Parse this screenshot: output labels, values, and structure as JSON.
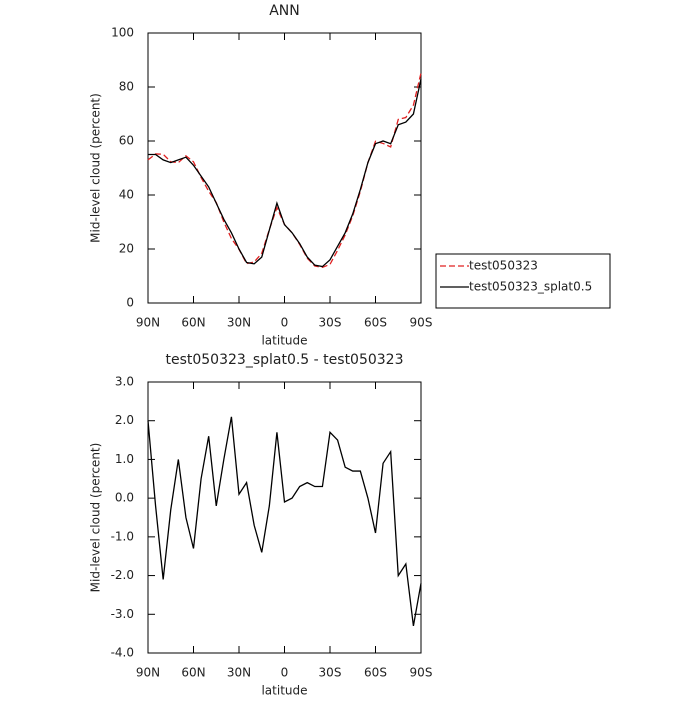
{
  "chart_data": [
    {
      "type": "line",
      "title": "ANN",
      "ylabel": "Mid-level cloud (percent)",
      "xlabel": "latitude",
      "x": [
        90,
        85,
        80,
        75,
        70,
        65,
        60,
        55,
        50,
        45,
        40,
        35,
        30,
        25,
        20,
        15,
        10,
        5,
        0,
        -5,
        -10,
        -15,
        -20,
        -25,
        -30,
        -35,
        -40,
        -45,
        -50,
        -55,
        -60,
        -65,
        -70,
        -75,
        -80,
        -85,
        -90
      ],
      "xlim": [
        90,
        -90
      ],
      "xticks": [
        {
          "value": 90,
          "label": "90N"
        },
        {
          "value": 60,
          "label": "60N"
        },
        {
          "value": 30,
          "label": "30N"
        },
        0,
        {
          "value": -30,
          "label": "30S"
        },
        {
          "value": -60,
          "label": "60S"
        },
        {
          "value": -90,
          "label": "90S"
        }
      ],
      "ylim": [
        0,
        100
      ],
      "yticks": [
        0,
        20,
        40,
        60,
        80,
        100
      ],
      "legend": "right",
      "series": [
        {
          "name": "test050323",
          "color": "#e02020",
          "style": "dashed",
          "values": [
            53,
            55.2,
            55.1,
            52.3,
            52,
            54.5,
            52.3,
            46.5,
            41.4,
            37.2,
            30,
            23.9,
            19.9,
            14.6,
            15.2,
            18.4,
            27.2,
            35.3,
            29.1,
            26,
            21.7,
            16.6,
            13.7,
            13.2,
            14.3,
            19.5,
            25.2,
            32.3,
            41.3,
            52,
            59.9,
            59.1,
            57.8,
            68,
            68.7,
            73.3,
            85.2
          ]
        },
        {
          "name": "test050323_splat0.5",
          "color": "#000000",
          "style": "solid",
          "values": [
            55,
            55,
            53,
            52,
            53,
            54,
            51,
            47,
            43,
            37,
            31,
            26,
            20,
            15,
            14.5,
            17,
            27,
            37,
            29,
            26,
            22,
            17,
            14,
            13.5,
            16,
            21,
            26,
            33,
            42,
            52,
            59,
            60,
            59,
            66,
            67,
            70,
            83
          ]
        }
      ]
    },
    {
      "type": "line",
      "title": "test050323_splat0.5 - test050323",
      "ylabel": "Mid-level cloud (percent)",
      "xlabel": "latitude",
      "x": [
        90,
        85,
        80,
        75,
        70,
        65,
        60,
        55,
        50,
        45,
        40,
        35,
        30,
        25,
        20,
        15,
        10,
        5,
        0,
        -5,
        -10,
        -15,
        -20,
        -25,
        -30,
        -35,
        -40,
        -45,
        -50,
        -55,
        -60,
        -65,
        -70,
        -75,
        -80,
        -85,
        -90
      ],
      "xlim": [
        90,
        -90
      ],
      "xticks": [
        {
          "value": 90,
          "label": "90N"
        },
        {
          "value": 60,
          "label": "60N"
        },
        {
          "value": 30,
          "label": "30N"
        },
        0,
        {
          "value": -30,
          "label": "30S"
        },
        {
          "value": -60,
          "label": "60S"
        },
        {
          "value": -90,
          "label": "90S"
        }
      ],
      "ylim": [
        -4,
        3
      ],
      "yticks": [
        {
          "value": -4,
          "label": "-4.0"
        },
        {
          "value": -3,
          "label": "-3.0"
        },
        {
          "value": -2,
          "label": "-2.0"
        },
        {
          "value": -1,
          "label": "-1.0"
        },
        {
          "value": 0,
          "label": "0.0"
        },
        {
          "value": 1,
          "label": "1.0"
        },
        {
          "value": 2,
          "label": "2.0"
        },
        {
          "value": 3,
          "label": "3.0"
        }
      ],
      "series": [
        {
          "color": "#000000",
          "style": "solid",
          "values": [
            2.0,
            -0.2,
            -2.1,
            -0.3,
            1.0,
            -0.5,
            -1.3,
            0.5,
            1.6,
            -0.2,
            1.0,
            2.1,
            0.1,
            0.4,
            -0.7,
            -1.4,
            -0.2,
            1.7,
            -0.1,
            0.0,
            0.3,
            0.4,
            0.3,
            0.3,
            1.7,
            1.5,
            0.8,
            0.7,
            0.7,
            0.0,
            -0.9,
            0.9,
            1.2,
            -2.0,
            -1.7,
            -3.3,
            -2.2
          ]
        }
      ]
    }
  ]
}
